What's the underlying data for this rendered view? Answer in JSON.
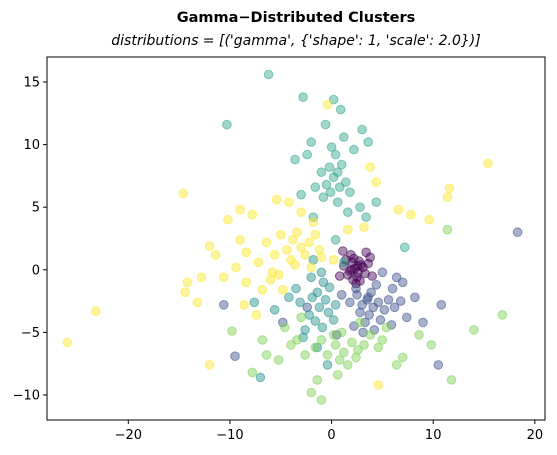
{
  "chart_data": {
    "type": "scatter",
    "title": "Gamma−Distributed Clusters",
    "subtitle": "distributions = [('gamma', {'shape': 1, 'scale': 2.0})]",
    "xlabel": "",
    "ylabel": "",
    "xlim": [
      -28,
      21
    ],
    "ylim": [
      -12,
      17
    ],
    "xticks": [
      -20,
      -10,
      0,
      10,
      20
    ],
    "yticks": [
      -10,
      -5,
      0,
      5,
      10,
      15
    ],
    "xtick_labels": [
      "−20",
      "−10",
      "0",
      "10",
      "20"
    ],
    "ytick_labels": [
      "−10",
      "−5",
      "0",
      "5",
      "10",
      "15"
    ],
    "grid": false,
    "legend": "none",
    "point_alpha": 0.45,
    "colormap": "viridis",
    "series": [
      {
        "color": "#440154",
        "points": [
          [
            1.2,
            0.3
          ],
          [
            1.6,
            -0.4
          ],
          [
            2.0,
            0.6
          ],
          [
            2.3,
            0.1
          ],
          [
            2.6,
            -0.2
          ],
          [
            2.9,
            0.4
          ],
          [
            1.8,
            -0.1
          ],
          [
            2.2,
            0.9
          ],
          [
            2.5,
            -0.6
          ],
          [
            3.1,
            0.2
          ],
          [
            1.4,
            0.8
          ],
          [
            2.7,
            0.7
          ],
          [
            3.3,
            -0.3
          ],
          [
            2.1,
            -0.8
          ],
          [
            3.6,
            0.5
          ],
          [
            1.9,
            1.2
          ],
          [
            2.4,
            -1.1
          ],
          [
            3.8,
            1.0
          ],
          [
            0.8,
            -0.5
          ],
          [
            2.8,
            -0.9
          ],
          [
            4.0,
            -0.5
          ],
          [
            1.1,
            1.5
          ],
          [
            3.4,
            1.4
          ],
          [
            2.0,
            0.0
          ],
          [
            2.6,
            0.3
          ]
        ]
      },
      {
        "color": "#3b528b",
        "points": [
          [
            2.5,
            -2.0
          ],
          [
            3.0,
            -2.8
          ],
          [
            3.6,
            -2.2
          ],
          [
            4.1,
            -3.0
          ],
          [
            2.8,
            -3.4
          ],
          [
            3.9,
            -1.8
          ],
          [
            4.6,
            -2.6
          ],
          [
            5.2,
            -3.2
          ],
          [
            3.3,
            -4.2
          ],
          [
            2.2,
            -4.5
          ],
          [
            4.8,
            -4.0
          ],
          [
            5.6,
            -2.4
          ],
          [
            3.7,
            -3.6
          ],
          [
            6.0,
            -1.5
          ],
          [
            6.8,
            -2.5
          ],
          [
            7.4,
            -3.8
          ],
          [
            1.8,
            -2.6
          ],
          [
            4.4,
            -1.2
          ],
          [
            5.9,
            -4.4
          ],
          [
            3.1,
            -5.0
          ],
          [
            6.4,
            -0.6
          ],
          [
            8.2,
            -2.2
          ],
          [
            2.4,
            -1.5
          ],
          [
            4.2,
            -4.8
          ],
          [
            10.8,
            -2.8
          ],
          [
            9.0,
            -4.2
          ],
          [
            18.3,
            3.0
          ],
          [
            10.5,
            -7.6
          ],
          [
            -10.6,
            -2.8
          ],
          [
            -9.5,
            -6.9
          ],
          [
            -4.8,
            -4.2
          ],
          [
            -2.4,
            -3.0
          ],
          [
            0.5,
            -5.2
          ],
          [
            1.0,
            -2.0
          ],
          [
            5.0,
            -0.2
          ],
          [
            7.0,
            -1.0
          ],
          [
            6.2,
            -3.0
          ],
          [
            3.5,
            -2.4
          ]
        ]
      },
      {
        "color": "#21918c",
        "points": [
          [
            -0.8,
            -1.0
          ],
          [
            -1.4,
            -1.8
          ],
          [
            -0.6,
            -2.4
          ],
          [
            -1.9,
            -2.2
          ],
          [
            -1.2,
            -3.0
          ],
          [
            -0.3,
            -3.4
          ],
          [
            -2.2,
            -3.6
          ],
          [
            -1.6,
            -4.1
          ],
          [
            -0.9,
            -4.6
          ],
          [
            -2.6,
            -4.8
          ],
          [
            -0.2,
            -1.4
          ],
          [
            0.4,
            -2.8
          ],
          [
            -1.0,
            -0.2
          ],
          [
            -1.8,
            0.8
          ],
          [
            -3.1,
            -2.6
          ],
          [
            -3.5,
            -1.5
          ],
          [
            -2.8,
            -5.4
          ],
          [
            0.2,
            -4.0
          ],
          [
            -1.4,
            -6.2
          ],
          [
            -0.4,
            -7.6
          ],
          [
            -7.0,
            -8.6
          ],
          [
            -7.6,
            -2.6
          ],
          [
            -4.2,
            -2.2
          ],
          [
            -5.6,
            -3.2
          ],
          [
            -2.0,
            -0.6
          ]
        ]
      },
      {
        "color": "#2ca58d",
        "points": [
          [
            -0.5,
            6.8
          ],
          [
            0.2,
            7.4
          ],
          [
            0.8,
            6.6
          ],
          [
            -0.2,
            8.2
          ],
          [
            1.0,
            8.4
          ],
          [
            0.4,
            9.2
          ],
          [
            -1.0,
            7.8
          ],
          [
            1.4,
            7.0
          ],
          [
            -0.8,
            5.8
          ],
          [
            0.6,
            5.4
          ],
          [
            1.8,
            6.2
          ],
          [
            -1.6,
            6.6
          ],
          [
            0.0,
            9.8
          ],
          [
            1.2,
            10.6
          ],
          [
            -0.6,
            11.6
          ],
          [
            0.9,
            12.8
          ],
          [
            0.2,
            13.6
          ],
          [
            -2.8,
            13.8
          ],
          [
            -6.2,
            15.6
          ],
          [
            -10.3,
            11.6
          ],
          [
            2.2,
            9.6
          ],
          [
            3.6,
            10.2
          ],
          [
            -2.4,
            9.2
          ],
          [
            -3.6,
            8.8
          ],
          [
            2.8,
            5.0
          ],
          [
            3.4,
            4.2
          ],
          [
            1.6,
            4.6
          ],
          [
            4.4,
            5.4
          ],
          [
            -1.8,
            4.2
          ],
          [
            -3.0,
            6.0
          ],
          [
            0.6,
            7.8
          ],
          [
            -0.1,
            6.2
          ],
          [
            7.2,
            1.8
          ],
          [
            0.4,
            2.4
          ],
          [
            1.2,
            0.6
          ],
          [
            3.0,
            11.2
          ],
          [
            -2.0,
            10.2
          ]
        ]
      },
      {
        "color": "#7ad151",
        "points": [
          [
            0.4,
            -6.0
          ],
          [
            1.2,
            -6.6
          ],
          [
            2.0,
            -5.8
          ],
          [
            -0.4,
            -6.8
          ],
          [
            0.8,
            -7.2
          ],
          [
            1.6,
            -7.6
          ],
          [
            2.6,
            -6.4
          ],
          [
            -1.0,
            -5.6
          ],
          [
            3.2,
            -6.0
          ],
          [
            0.2,
            -5.2
          ],
          [
            -1.6,
            -6.2
          ],
          [
            1.0,
            -5.0
          ],
          [
            2.4,
            -7.0
          ],
          [
            -2.6,
            -6.8
          ],
          [
            3.8,
            -5.2
          ],
          [
            -3.4,
            -5.6
          ],
          [
            -4.6,
            -4.6
          ],
          [
            4.6,
            -6.2
          ],
          [
            -5.2,
            -7.2
          ],
          [
            5.4,
            -4.6
          ],
          [
            -6.4,
            -6.8
          ],
          [
            -7.8,
            -8.2
          ],
          [
            6.4,
            -7.6
          ],
          [
            -1.4,
            -8.8
          ],
          [
            -1.0,
            -10.4
          ],
          [
            0.6,
            -8.4
          ],
          [
            -2.0,
            -9.8
          ],
          [
            8.6,
            -5.2
          ],
          [
            9.8,
            -6.0
          ],
          [
            11.8,
            -8.8
          ],
          [
            14.0,
            -4.8
          ],
          [
            16.8,
            -3.6
          ],
          [
            11.4,
            3.2
          ],
          [
            7.0,
            -7.0
          ],
          [
            -3.0,
            -3.8
          ],
          [
            -4.0,
            -6.0
          ],
          [
            -6.8,
            -5.6
          ],
          [
            -9.8,
            -4.9
          ],
          [
            2.8,
            -4.2
          ],
          [
            5.0,
            -5.6
          ]
        ]
      },
      {
        "color": "#fde725",
        "points": [
          [
            -2.2,
            2.2
          ],
          [
            -3.0,
            1.8
          ],
          [
            -1.6,
            2.8
          ],
          [
            -3.8,
            2.4
          ],
          [
            -2.6,
            1.2
          ],
          [
            -4.4,
            1.6
          ],
          [
            -1.2,
            1.6
          ],
          [
            -3.4,
            3.0
          ],
          [
            -5.0,
            2.8
          ],
          [
            -4.0,
            0.8
          ],
          [
            -2.0,
            0.2
          ],
          [
            -5.6,
            1.2
          ],
          [
            -6.4,
            2.2
          ],
          [
            -7.2,
            0.6
          ],
          [
            -6.0,
            -0.8
          ],
          [
            -8.4,
            1.4
          ],
          [
            -9.4,
            0.2
          ],
          [
            -9.0,
            2.4
          ],
          [
            -10.6,
            -0.6
          ],
          [
            -11.4,
            1.2
          ],
          [
            -12.0,
            1.9
          ],
          [
            -12.8,
            -0.6
          ],
          [
            -13.2,
            -2.6
          ],
          [
            -14.2,
            -1.0
          ],
          [
            -14.4,
            -1.8
          ],
          [
            -14.6,
            6.1
          ],
          [
            -23.2,
            -3.3
          ],
          [
            -26.0,
            -5.8
          ],
          [
            -12.0,
            -7.6
          ],
          [
            -8.4,
            -1.0
          ],
          [
            -6.8,
            -1.6
          ],
          [
            -5.2,
            -0.4
          ],
          [
            -3.6,
            0.4
          ],
          [
            -7.8,
            4.4
          ],
          [
            -9.0,
            4.8
          ],
          [
            -10.2,
            4.0
          ],
          [
            -5.4,
            5.6
          ],
          [
            -4.2,
            5.4
          ],
          [
            -3.0,
            4.6
          ],
          [
            -1.8,
            3.8
          ],
          [
            1.6,
            3.2
          ],
          [
            3.2,
            3.4
          ],
          [
            3.8,
            8.2
          ],
          [
            4.4,
            7.0
          ],
          [
            6.6,
            4.8
          ],
          [
            7.8,
            4.4
          ],
          [
            9.6,
            4.0
          ],
          [
            11.4,
            5.8
          ],
          [
            11.6,
            6.5
          ],
          [
            15.4,
            8.5
          ],
          [
            -0.4,
            13.2
          ],
          [
            4.6,
            -9.2
          ],
          [
            -7.4,
            -3.6
          ],
          [
            -4.8,
            -1.6
          ],
          [
            -5.8,
            -0.2
          ],
          [
            0.2,
            0.8
          ],
          [
            -1.0,
            1.0
          ],
          [
            -8.6,
            -2.8
          ]
        ]
      }
    ]
  }
}
